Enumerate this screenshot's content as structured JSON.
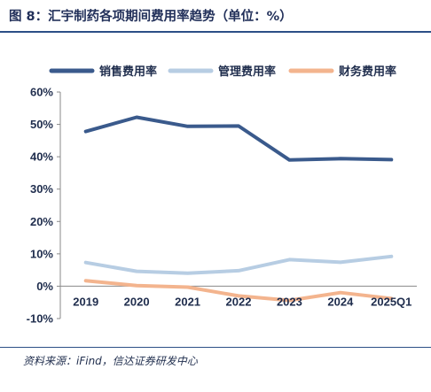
{
  "header": {
    "title": "图 8：汇宇制药各项期间费用率趋势（单位：%）"
  },
  "footer": {
    "source": "资料来源：iFind，信达证券研发中心"
  },
  "chart_data": {
    "type": "line",
    "categories": [
      "2019",
      "2020",
      "2021",
      "2022",
      "2023",
      "2024",
      "2025Q1"
    ],
    "series": [
      {
        "name": "销售费用率",
        "color": "#3a5a8c",
        "values": [
          47.8,
          52.2,
          49.4,
          49.5,
          39.0,
          39.4,
          39.1
        ]
      },
      {
        "name": "管理费用率",
        "color": "#b7cde3",
        "values": [
          7.3,
          4.6,
          4.0,
          4.8,
          8.2,
          7.4,
          9.2
        ]
      },
      {
        "name": "财务费用率",
        "color": "#f3b48e",
        "values": [
          1.7,
          0.2,
          -0.3,
          -3.0,
          -4.4,
          -2.0,
          -3.8
        ]
      }
    ],
    "ylim": [
      -10,
      60
    ],
    "yticks": [
      -10,
      0,
      10,
      20,
      30,
      40,
      50,
      60
    ],
    "ytick_labels": [
      "-10%",
      "0%",
      "10%",
      "20%",
      "30%",
      "40%",
      "50%",
      "60%"
    ],
    "grid": false,
    "legend_position": "top"
  }
}
